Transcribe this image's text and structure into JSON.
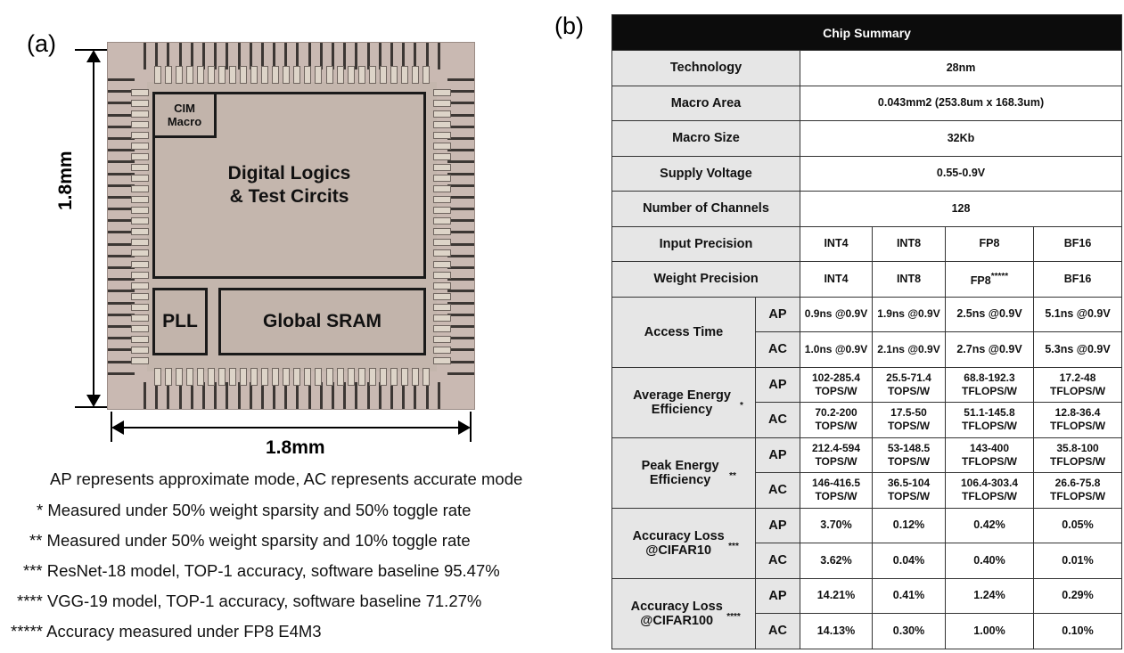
{
  "panel_a": {
    "label": "(a)",
    "blocks": {
      "cim": "CIM Macro",
      "digital_line1": "Digital Logics",
      "digital_line2": "& Test Circits",
      "pll": "PLL",
      "sram": "Global SRAM"
    },
    "dim_vertical": "1.8mm",
    "dim_horizontal": "1.8mm"
  },
  "notes": [
    "AP represents approximate mode, AC represents accurate mode",
    "* Measured under 50% weight sparsity and 50% toggle rate",
    "** Measured under 50% weight sparsity and 10% toggle rate",
    "*** ResNet-18 model, TOP-1 accuracy, software baseline 95.47%",
    "**** VGG-19 model, TOP-1 accuracy, software baseline 71.27%",
    "***** Accuracy measured under FP8 E4M3"
  ],
  "panel_b": {
    "label": "(b)",
    "title": "Chip Summary",
    "technology": {
      "label": "Technology",
      "value": "28nm"
    },
    "macro_area": {
      "label": "Macro Area",
      "value": "0.043mm2 (253.8um x 168.3um)"
    },
    "macro_size": {
      "label": "Macro Size",
      "value": "32Kb"
    },
    "supply_voltage": {
      "label": "Supply Voltage",
      "value": "0.55-0.9V"
    },
    "channels": {
      "label": "Number of Channels",
      "value": "128"
    },
    "input_precision": {
      "label": "Input Precision",
      "values": [
        "INT4",
        "INT8",
        "FP8",
        "BF16"
      ]
    },
    "weight_precision": {
      "label": "Weight Precision",
      "values": [
        "INT4",
        "INT8",
        "FP8",
        "BF16"
      ],
      "fp8_mark": "*****"
    },
    "access_time": {
      "label": "Access Time",
      "ap": [
        "0.9ns @0.9V",
        "1.9ns @0.9V",
        "2.5ns @0.9V",
        "5.1ns @0.9V"
      ],
      "ac": [
        "1.0ns @0.9V",
        "2.1ns @0.9V",
        "2.7ns @0.9V",
        "5.3ns @0.9V"
      ]
    },
    "avg_eff": {
      "label": "Average Energy Efficiency",
      "mark": "*",
      "ap": [
        "102-285.4 TOPS/W",
        "25.5-71.4 TOPS/W",
        "68.8-192.3 TFLOPS/W",
        "17.2-48 TFLOPS/W"
      ],
      "ac": [
        "70.2-200 TOPS/W",
        "17.5-50 TOPS/W",
        "51.1-145.8 TFLOPS/W",
        "12.8-36.4 TFLOPS/W"
      ]
    },
    "peak_eff": {
      "label": "Peak Energy Efficiency",
      "mark": "**",
      "ap": [
        "212.4-594 TOPS/W",
        "53-148.5 TOPS/W",
        "143-400 TFLOPS/W",
        "35.8-100 TFLOPS/W"
      ],
      "ac": [
        "146-416.5 TOPS/W",
        "36.5-104 TOPS/W",
        "106.4-303.4 TFLOPS/W",
        "26.6-75.8 TFLOPS/W"
      ]
    },
    "acc_c10": {
      "label": "Accuracy Loss @CIFAR10",
      "mark": "***",
      "ap": [
        "3.70%",
        "0.12%",
        "0.42%",
        "0.05%"
      ],
      "ac": [
        "3.62%",
        "0.04%",
        "0.40%",
        "0.01%"
      ]
    },
    "acc_c100": {
      "label": "Accuracy Loss @CIFAR100",
      "mark": "****",
      "ap": [
        "14.21%",
        "0.41%",
        "1.24%",
        "0.29%"
      ],
      "ac": [
        "14.13%",
        "0.30%",
        "1.00%",
        "0.10%"
      ]
    },
    "mode_ap": "AP",
    "mode_ac": "AC"
  }
}
